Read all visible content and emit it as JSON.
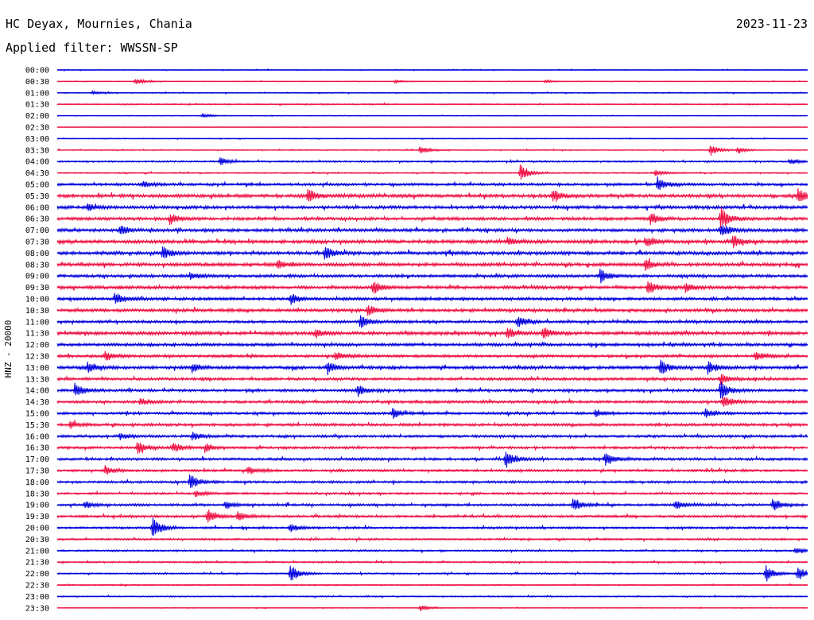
{
  "header": {
    "station": "HC Deyax, Mournies, Chania",
    "date": "2023-11-23",
    "filter": "Applied filter: WWSSN-SP"
  },
  "colors": {
    "trace_a": "#0000dd",
    "trace_b": "#ee1144",
    "text": "#000000",
    "background": "#ffffff"
  },
  "chart_data": {
    "type": "line",
    "title": "HC Deyax, Mournies, Chania",
    "ylabel": "HNZ - 20000",
    "xlabel": "",
    "grid": false,
    "legend": "none",
    "row_labels": [
      "00:00",
      "00:30",
      "01:00",
      "01:30",
      "02:00",
      "02:30",
      "03:00",
      "03:30",
      "04:00",
      "04:30",
      "05:00",
      "05:30",
      "06:00",
      "06:30",
      "07:00",
      "07:30",
      "08:00",
      "08:30",
      "09:00",
      "09:30",
      "10:00",
      "10:30",
      "11:00",
      "11:30",
      "12:00",
      "12:30",
      "13:00",
      "13:30",
      "14:00",
      "14:30",
      "15:00",
      "15:30",
      "16:00",
      "16:30",
      "17:00",
      "17:30",
      "18:00",
      "18:30",
      "19:00",
      "19:30",
      "20:00",
      "20:30",
      "21:00",
      "21:30",
      "22:00",
      "22:30",
      "23:00",
      "23:30"
    ],
    "row_minutes": 30,
    "noise_level": [
      0.4,
      0.3,
      0.5,
      0.6,
      0.3,
      0.3,
      0.4,
      0.5,
      0.8,
      0.6,
      1.2,
      1.6,
      1.5,
      1.4,
      1.5,
      1.6,
      1.6,
      1.6,
      1.4,
      1.5,
      1.4,
      1.5,
      1.3,
      1.6,
      1.4,
      1.3,
      1.5,
      1.3,
      1.3,
      1.3,
      1.2,
      1.3,
      1.2,
      1.2,
      1.2,
      1.1,
      1.1,
      1.0,
      1.1,
      1.1,
      1.0,
      0.9,
      0.8,
      0.8,
      0.7,
      0.6,
      0.6,
      0.4
    ],
    "events": [
      {
        "row": 1,
        "minute": 3.1,
        "amp": 5
      },
      {
        "row": 1,
        "minute": 13.5,
        "amp": 2
      },
      {
        "row": 1,
        "minute": 19.5,
        "amp": 2
      },
      {
        "row": 2,
        "minute": 1.4,
        "amp": 2
      },
      {
        "row": 4,
        "minute": 5.8,
        "amp": 3
      },
      {
        "row": 7,
        "minute": 14.5,
        "amp": 6
      },
      {
        "row": 7,
        "minute": 26.1,
        "amp": 8
      },
      {
        "row": 7,
        "minute": 27.2,
        "amp": 4
      },
      {
        "row": 8,
        "minute": 6.5,
        "amp": 5
      },
      {
        "row": 8,
        "minute": 29.3,
        "amp": 4
      },
      {
        "row": 9,
        "minute": 18.5,
        "amp": 11
      },
      {
        "row": 9,
        "minute": 23.9,
        "amp": 4
      },
      {
        "row": 10,
        "minute": 24.0,
        "amp": 9
      },
      {
        "row": 10,
        "minute": 3.4,
        "amp": 4
      },
      {
        "row": 11,
        "minute": 10.0,
        "amp": 9
      },
      {
        "row": 11,
        "minute": 19.8,
        "amp": 9
      },
      {
        "row": 11,
        "minute": 29.6,
        "amp": 10
      },
      {
        "row": 12,
        "minute": 1.2,
        "amp": 5
      },
      {
        "row": 13,
        "minute": 4.5,
        "amp": 8
      },
      {
        "row": 13,
        "minute": 23.7,
        "amp": 8
      },
      {
        "row": 13,
        "minute": 26.5,
        "amp": 16
      },
      {
        "row": 14,
        "minute": 2.5,
        "amp": 6
      },
      {
        "row": 14,
        "minute": 26.5,
        "amp": 9
      },
      {
        "row": 15,
        "minute": 18.0,
        "amp": 6
      },
      {
        "row": 15,
        "minute": 23.5,
        "amp": 7
      },
      {
        "row": 15,
        "minute": 27.0,
        "amp": 8
      },
      {
        "row": 16,
        "minute": 4.2,
        "amp": 9
      },
      {
        "row": 16,
        "minute": 10.7,
        "amp": 10
      },
      {
        "row": 17,
        "minute": 8.8,
        "amp": 6
      },
      {
        "row": 17,
        "minute": 23.5,
        "amp": 8
      },
      {
        "row": 18,
        "minute": 21.7,
        "amp": 10
      },
      {
        "row": 18,
        "minute": 5.3,
        "amp": 5
      },
      {
        "row": 19,
        "minute": 12.6,
        "amp": 9
      },
      {
        "row": 19,
        "minute": 23.6,
        "amp": 10
      },
      {
        "row": 19,
        "minute": 25.1,
        "amp": 7
      },
      {
        "row": 20,
        "minute": 2.3,
        "amp": 8
      },
      {
        "row": 20,
        "minute": 9.3,
        "amp": 7
      },
      {
        "row": 21,
        "minute": 12.4,
        "amp": 7
      },
      {
        "row": 22,
        "minute": 12.1,
        "amp": 9
      },
      {
        "row": 22,
        "minute": 18.4,
        "amp": 8
      },
      {
        "row": 23,
        "minute": 18.0,
        "amp": 7
      },
      {
        "row": 23,
        "minute": 19.4,
        "amp": 8
      },
      {
        "row": 23,
        "minute": 10.3,
        "amp": 6
      },
      {
        "row": 25,
        "minute": 1.9,
        "amp": 6
      },
      {
        "row": 25,
        "minute": 11.1,
        "amp": 6
      },
      {
        "row": 25,
        "minute": 27.9,
        "amp": 6
      },
      {
        "row": 26,
        "minute": 1.2,
        "amp": 8
      },
      {
        "row": 26,
        "minute": 5.4,
        "amp": 6
      },
      {
        "row": 26,
        "minute": 10.8,
        "amp": 7
      },
      {
        "row": 26,
        "minute": 24.1,
        "amp": 10
      },
      {
        "row": 26,
        "minute": 26.0,
        "amp": 9
      },
      {
        "row": 27,
        "minute": 26.5,
        "amp": 7
      },
      {
        "row": 28,
        "minute": 0.7,
        "amp": 10
      },
      {
        "row": 28,
        "minute": 12.0,
        "amp": 8
      },
      {
        "row": 28,
        "minute": 26.5,
        "amp": 12
      },
      {
        "row": 29,
        "minute": 3.3,
        "amp": 5
      },
      {
        "row": 29,
        "minute": 26.6,
        "amp": 9
      },
      {
        "row": 30,
        "minute": 13.4,
        "amp": 8
      },
      {
        "row": 30,
        "minute": 21.5,
        "amp": 6
      },
      {
        "row": 30,
        "minute": 25.9,
        "amp": 6
      },
      {
        "row": 31,
        "minute": 0.5,
        "amp": 5
      },
      {
        "row": 32,
        "minute": 2.5,
        "amp": 4
      },
      {
        "row": 32,
        "minute": 5.4,
        "amp": 6
      },
      {
        "row": 33,
        "minute": 3.2,
        "amp": 8
      },
      {
        "row": 33,
        "minute": 4.6,
        "amp": 7
      },
      {
        "row": 33,
        "minute": 5.9,
        "amp": 6
      },
      {
        "row": 34,
        "minute": 17.9,
        "amp": 14
      },
      {
        "row": 34,
        "minute": 21.9,
        "amp": 10
      },
      {
        "row": 35,
        "minute": 1.9,
        "amp": 6
      },
      {
        "row": 35,
        "minute": 7.6,
        "amp": 6
      },
      {
        "row": 36,
        "minute": 5.3,
        "amp": 10
      },
      {
        "row": 37,
        "minute": 5.5,
        "amp": 4
      },
      {
        "row": 38,
        "minute": 1.1,
        "amp": 5
      },
      {
        "row": 38,
        "minute": 6.7,
        "amp": 5
      },
      {
        "row": 38,
        "minute": 20.6,
        "amp": 8
      },
      {
        "row": 38,
        "minute": 24.7,
        "amp": 6
      },
      {
        "row": 38,
        "minute": 28.6,
        "amp": 8
      },
      {
        "row": 39,
        "minute": 6.0,
        "amp": 9
      },
      {
        "row": 39,
        "minute": 7.2,
        "amp": 6
      },
      {
        "row": 40,
        "minute": 3.8,
        "amp": 14
      },
      {
        "row": 40,
        "minute": 9.3,
        "amp": 6
      },
      {
        "row": 42,
        "minute": 29.5,
        "amp": 4
      },
      {
        "row": 44,
        "minute": 9.3,
        "amp": 12
      },
      {
        "row": 44,
        "minute": 28.3,
        "amp": 12
      },
      {
        "row": 44,
        "minute": 29.6,
        "amp": 10
      },
      {
        "row": 47,
        "minute": 14.5,
        "amp": 4
      }
    ]
  }
}
